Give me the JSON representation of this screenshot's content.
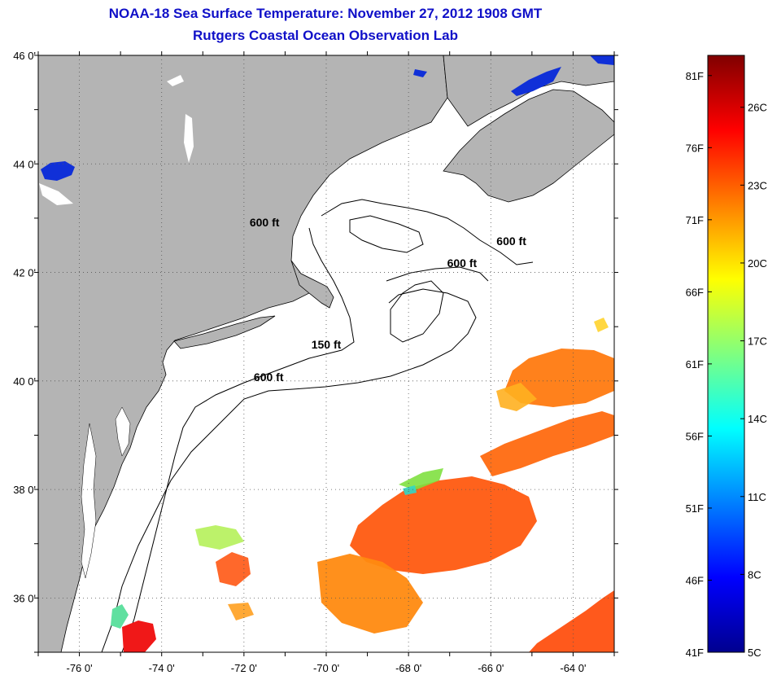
{
  "header": {
    "title": "NOAA-18 Sea Surface Temperature:  November 27, 2012 1908 GMT",
    "subtitle": "Rutgers Coastal Ocean Observation Lab"
  },
  "map": {
    "lon_range": [
      -77,
      -63
    ],
    "lat_range": [
      35,
      46
    ],
    "x_ticks": [
      {
        "value": -76,
        "label": "-76 0'"
      },
      {
        "value": -74,
        "label": "-74 0'"
      },
      {
        "value": -72,
        "label": "-72 0'"
      },
      {
        "value": -70,
        "label": "-70 0'"
      },
      {
        "value": -68,
        "label": "-68 0'"
      },
      {
        "value": -66,
        "label": "-66 0'"
      },
      {
        "value": -64,
        "label": "-64 0'"
      }
    ],
    "y_ticks": [
      {
        "value": 46,
        "label": "46 0'"
      },
      {
        "value": 44,
        "label": "44 0'"
      },
      {
        "value": 42,
        "label": "42 0'"
      },
      {
        "value": 40,
        "label": "40 0'"
      },
      {
        "value": 38,
        "label": "38 0'"
      },
      {
        "value": 36,
        "label": "36 0'"
      }
    ],
    "contour_labels": [
      {
        "text": "600 ft",
        "lon": -71.5,
        "lat": 42.85
      },
      {
        "text": "600 ft",
        "lon": -65.5,
        "lat": 42.5
      },
      {
        "text": "600 ft",
        "lon": -66.7,
        "lat": 42.1
      },
      {
        "text": "150 ft",
        "lon": -70.0,
        "lat": 40.6
      },
      {
        "text": "600 ft",
        "lon": -71.4,
        "lat": 40.0
      }
    ],
    "colors": {
      "land": "#b4b4b4",
      "ocean": "#ffffff",
      "grid": "#555555",
      "lake": "#1030d8"
    }
  },
  "colorbar": {
    "f_labels": [
      {
        "label": "81F",
        "value": 81
      },
      {
        "label": "76F",
        "value": 76
      },
      {
        "label": "71F",
        "value": 71
      },
      {
        "label": "66F",
        "value": 66
      },
      {
        "label": "61F",
        "value": 61
      },
      {
        "label": "56F",
        "value": 56
      },
      {
        "label": "51F",
        "value": 51
      },
      {
        "label": "46F",
        "value": 46
      },
      {
        "label": "41F",
        "value": 41
      }
    ],
    "c_labels": [
      {
        "label": "26C",
        "value": 26
      },
      {
        "label": "23C",
        "value": 23
      },
      {
        "label": "20C",
        "value": 20
      },
      {
        "label": "17C",
        "value": 17
      },
      {
        "label": "14C",
        "value": 14
      },
      {
        "label": "11C",
        "value": 11
      },
      {
        "label": "8C",
        "value": 8
      },
      {
        "label": "5C",
        "value": 5
      }
    ],
    "range_f": [
      41,
      82.4
    ]
  }
}
